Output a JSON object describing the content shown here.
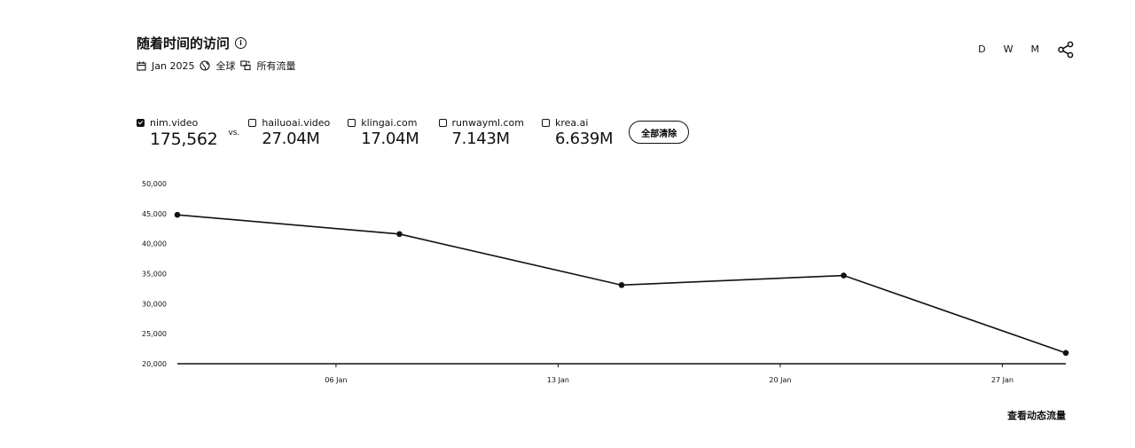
{
  "header": {
    "title": "随着时间的访问",
    "info_icon": "info-icon"
  },
  "filters": {
    "date": "Jan 2025",
    "region": "全球",
    "traffic": "所有流量"
  },
  "granularity": [
    "D",
    "W",
    "M"
  ],
  "domains": [
    {
      "name": "nim.video",
      "value": "175,562",
      "checked": true
    },
    {
      "name": "hailuoai.video",
      "value": "27.04M",
      "checked": false
    },
    {
      "name": "klingai.com",
      "value": "17.04M",
      "checked": false
    },
    {
      "name": "runwayml.com",
      "value": "7.143M",
      "checked": false
    },
    {
      "name": "krea.ai",
      "value": "6.639M",
      "checked": false
    }
  ],
  "vs_label": "vs.",
  "clear_all_label": "全部清除",
  "footer_link": "查看动态流量",
  "chart_data": {
    "type": "line",
    "x": [
      "2025-01-01",
      "2025-01-08",
      "2025-01-15",
      "2025-01-22",
      "2025-01-29"
    ],
    "series": [
      {
        "name": "nim.video",
        "values": [
          44800,
          41600,
          33100,
          34700,
          21800
        ]
      }
    ],
    "xlim": [
      "2025-01-01",
      "2025-01-29"
    ],
    "x_ticks": [
      "06 Jan",
      "13 Jan",
      "20 Jan",
      "27 Jan"
    ],
    "x_tick_dates": [
      "2025-01-06",
      "2025-01-13",
      "2025-01-20",
      "2025-01-27"
    ],
    "ylim": [
      20000,
      50000
    ],
    "y_ticks": [
      "20,000",
      "25,000",
      "30,000",
      "35,000",
      "40,000",
      "45,000",
      "50,000"
    ],
    "y_tick_values": [
      20000,
      25000,
      30000,
      35000,
      40000,
      45000,
      50000
    ],
    "grid": false,
    "line_color": "#111111"
  }
}
